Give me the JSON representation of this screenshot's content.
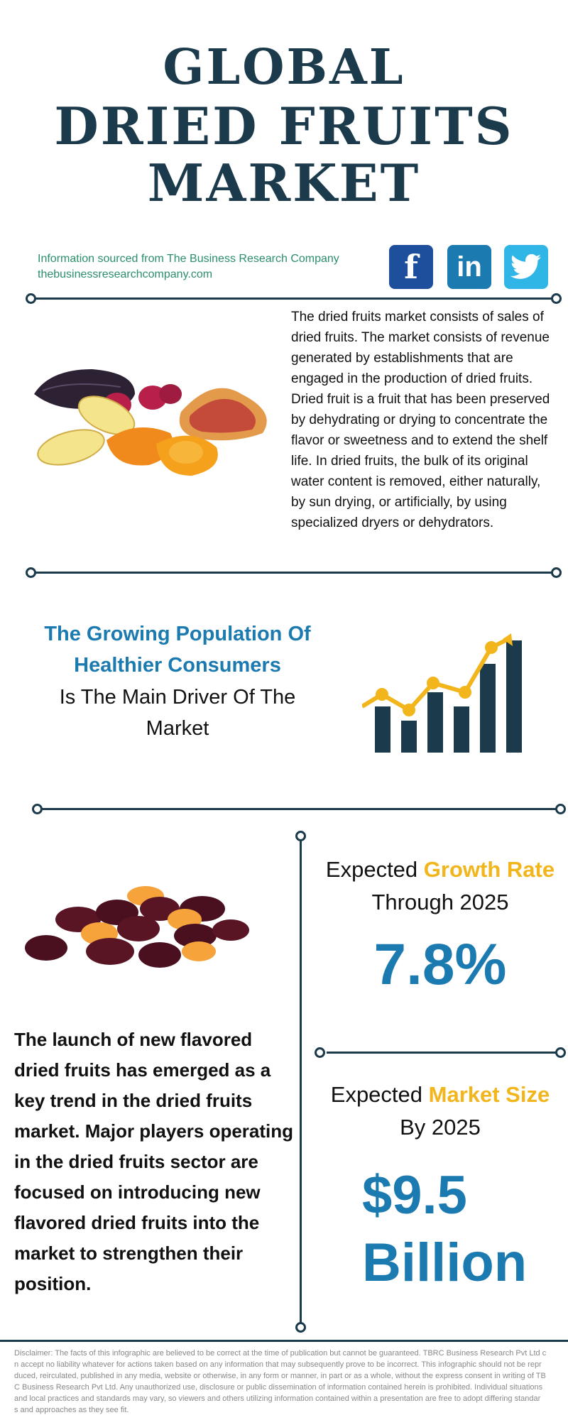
{
  "title": {
    "line1": "GLOBAL",
    "line2": "DRIED FRUITS",
    "line3": "MARKET"
  },
  "source": {
    "line1": "Information sourced from The Business Research Company",
    "line2": "thebusinessresearchcompany.com"
  },
  "social": {
    "facebook": {
      "glyph": "f",
      "color": "#1d4f9c"
    },
    "linkedin": {
      "glyph": "in",
      "color": "#1b7ab0"
    },
    "twitter": {
      "color": "#2fb5e6"
    }
  },
  "description": "The dried fruits market consists of sales of dried fruits. The market consists of revenue generated by establishments that are engaged in the production of dried fruits. Dried fruit is a fruit that has been preserved by dehydrating or drying to concentrate the flavor or sweetness and to extend the shelf life. In dried fruits, the bulk of its original water content is removed, either naturally, by sun drying, or artificially, by using specialized dryers or dehydrators.",
  "driver": {
    "highlight_line1": "The Growing Population Of",
    "highlight_line2": "Healthier Consumers",
    "rest_line1": "Is The Main Driver Of The",
    "rest_line2": "Market"
  },
  "growth": {
    "prefix": "Expected ",
    "accent": "Growth Rate",
    "line2": "Through 2025",
    "value": "7.8%"
  },
  "market_size": {
    "prefix": "Expected ",
    "accent": "Market Size",
    "line2": "By 2025",
    "value_line1": "$9.5",
    "value_line2": "Billion"
  },
  "trend": "The launch of new flavored dried fruits has emerged as a key trend in the dried fruits market. Major players operating in the dried fruits sector are focused on introducing new flavored dried fruits into the market to strengthen their position.",
  "disclaimer": [
    "Disclaimer: The facts of this infographic are believed to be correct at the time of publication but cannot be guaranteed. TBRC Business Research Pvt Ltd c",
    "n accept no liability whatever for actions taken based on any information that may subsequently prove to be incorrect. This infographic should not be repr",
    "duced, reirculated, published in any media, website or otherwise, in any form or manner, in part or as a whole, without the express consent in writing of TB",
    "C Business Research Pvt Ltd. Any unauthorized use, disclosure or public dissemination of information contained herein is prohibited. Individual situations",
    "and local practices and standards may vary, so viewers and others utilizing information contained within a presentation are free to adopt differing standar",
    "s and approaches as they see fit."
  ],
  "colors": {
    "navy": "#1b3a4b",
    "blue": "#1b7ab0",
    "gold": "#f2b51b"
  }
}
